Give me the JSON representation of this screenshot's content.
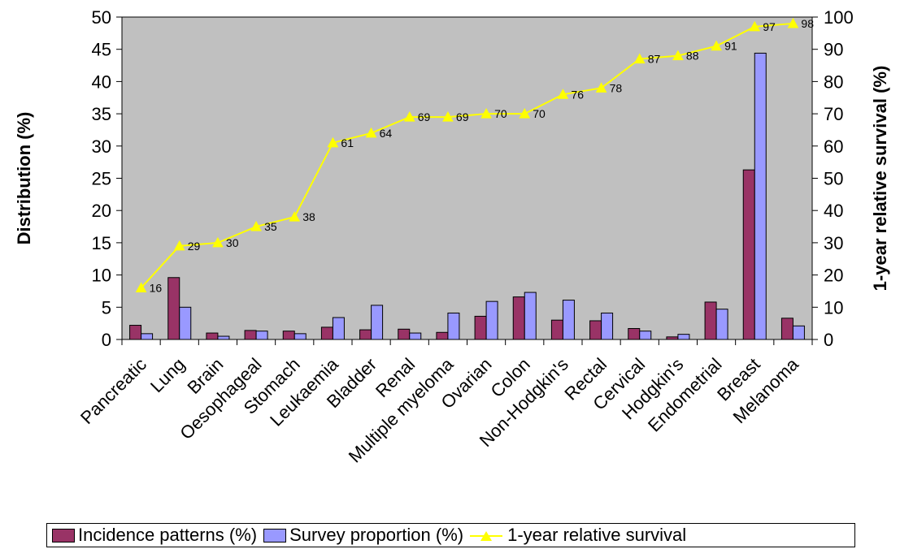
{
  "chart_data": {
    "type": "bar",
    "title": "",
    "categories": [
      "Pancreatic",
      "Lung",
      "Brain",
      "Oesophageal",
      "Stomach",
      "Leukaemia",
      "Bladder",
      "Renal",
      "Multiple myeloma",
      "Ovarian",
      "Colon",
      "Non-Hodgkin's",
      "Rectal",
      "Cervical",
      "Hodgkin's",
      "Endometrial",
      "Breast",
      "Melanoma"
    ],
    "series": [
      {
        "name": "Incidence patterns (%)",
        "kind": "bar",
        "axis": "left",
        "color": "#993366",
        "values": [
          2.2,
          9.6,
          1.0,
          1.4,
          1.3,
          1.9,
          1.5,
          1.6,
          1.1,
          3.6,
          6.6,
          3.0,
          2.9,
          1.7,
          0.4,
          5.8,
          26.3,
          3.3
        ]
      },
      {
        "name": "Survey proportion (%)",
        "kind": "bar",
        "axis": "left",
        "color": "#9999ff",
        "values": [
          0.9,
          5.0,
          0.5,
          1.3,
          0.9,
          3.4,
          5.3,
          1.0,
          4.1,
          5.9,
          7.3,
          6.1,
          4.1,
          1.3,
          0.8,
          4.7,
          44.4,
          2.1
        ]
      },
      {
        "name": "1-year relative survival",
        "kind": "line",
        "axis": "right",
        "color": "#ffff00",
        "values": [
          16,
          29,
          30,
          35,
          38,
          61,
          64,
          69,
          69,
          70,
          70,
          76,
          78,
          87,
          88,
          91,
          97,
          98
        ],
        "labels": [
          "16",
          "29",
          "30",
          "35",
          "38",
          "61",
          "64",
          "69",
          "69",
          "70",
          "70",
          "76",
          "78",
          "87",
          "88",
          "91",
          "97",
          "98"
        ]
      }
    ],
    "ylabel": "Distribution (%)",
    "ylim": [
      0,
      50
    ],
    "yticks": [
      "0",
      "5",
      "10",
      "15",
      "20",
      "25",
      "30",
      "35",
      "40",
      "45",
      "50"
    ],
    "y2label": "1-year relative survival (%)",
    "y2lim": [
      0,
      100
    ],
    "y2ticks": [
      "0",
      "10",
      "20",
      "30",
      "40",
      "50",
      "60",
      "70",
      "80",
      "90",
      "100"
    ],
    "plot_background": "#c0c0c0",
    "grid": false,
    "legend_position": "bottom"
  },
  "legend": {
    "items": [
      {
        "label": "Incidence patterns (%)",
        "color": "#993366"
      },
      {
        "label": "Survey proportion (%)",
        "color": "#9999ff"
      },
      {
        "label": "1-year relative survival",
        "color": "#ffff00"
      }
    ]
  }
}
